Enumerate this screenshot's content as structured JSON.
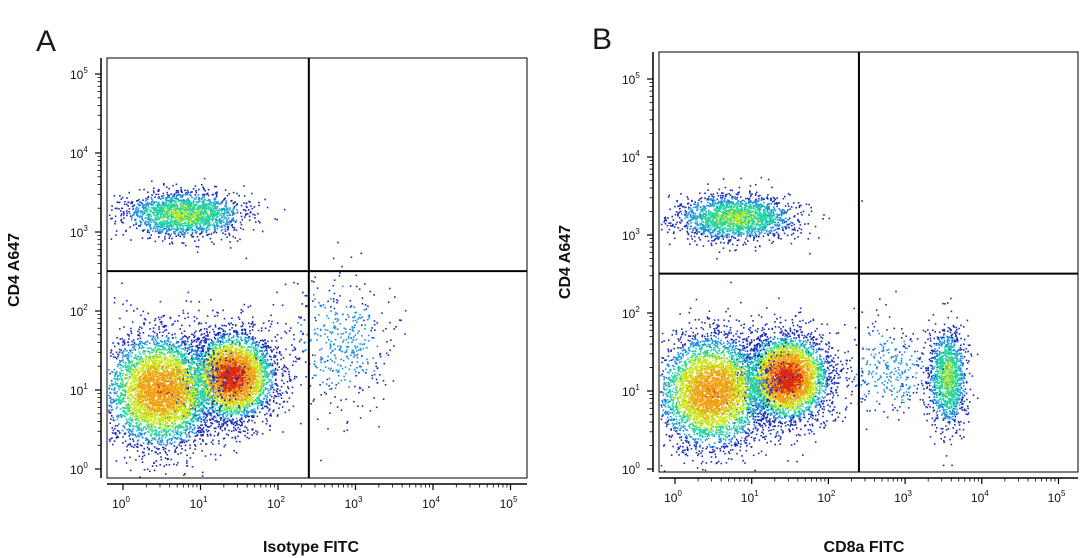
{
  "chart_data": [
    {
      "type": "scatter",
      "panel_label": "A",
      "xlabel": "Isotype FITC",
      "ylabel": "CD4 A647",
      "x_scale": "log",
      "y_scale": "log",
      "xlim": [
        0.6,
        150000
      ],
      "ylim": [
        0.6,
        200000
      ],
      "x_ticks": [
        "10^0",
        "10^1",
        "10^2",
        "10^3",
        "10^4",
        "10^5"
      ],
      "y_ticks": [
        "10^0",
        "10^1",
        "10^2",
        "10^3",
        "10^4",
        "10^5"
      ],
      "quadrant_gate": {
        "x": 250,
        "y": 320
      },
      "populations": [
        {
          "name": "",
          "x_center": 25,
          "y_center": 15,
          "x_spread_log": 0.28,
          "y_spread_log": 0.28,
          "count": 3800,
          "density": "very high"
        },
        {
          "name": "",
          "x_center": 3,
          "y_center": 10,
          "x_spread_log": 0.36,
          "y_spread_log": 0.36,
          "count": 4200,
          "density": "high"
        },
        {
          "name": "",
          "x_center": 6,
          "y_center": 1700,
          "x_spread_log": 0.38,
          "y_spread_log": 0.14,
          "count": 1900,
          "density": "medium"
        },
        {
          "name": "",
          "x_center": 600,
          "y_center": 40,
          "x_spread_log": 0.35,
          "y_spread_log": 0.4,
          "count": 450,
          "density": "low"
        }
      ],
      "density_colors": [
        "#1a2ab5",
        "#1e8fe0",
        "#23d4a0",
        "#c8e81a",
        "#f0a012",
        "#d92a10"
      ]
    },
    {
      "type": "scatter",
      "panel_label": "B",
      "xlabel": "CD8a FITC",
      "ylabel": "CD4 A647",
      "x_scale": "log",
      "y_scale": "log",
      "xlim": [
        0.6,
        150000
      ],
      "ylim": [
        0.6,
        200000
      ],
      "x_ticks": [
        "10^0",
        "10^1",
        "10^2",
        "10^3",
        "10^4",
        "10^5"
      ],
      "y_ticks": [
        "10^0",
        "10^1",
        "10^2",
        "10^3",
        "10^4",
        "10^5"
      ],
      "quadrant_gate": {
        "x": 250,
        "y": 320
      },
      "populations": [
        {
          "name": "",
          "x_center": 28,
          "y_center": 15,
          "x_spread_log": 0.28,
          "y_spread_log": 0.28,
          "count": 4000,
          "density": "very high"
        },
        {
          "name": "",
          "x_center": 3,
          "y_center": 10,
          "x_spread_log": 0.36,
          "y_spread_log": 0.36,
          "count": 4000,
          "density": "high"
        },
        {
          "name": "",
          "x_center": 6,
          "y_center": 1700,
          "x_spread_log": 0.38,
          "y_spread_log": 0.14,
          "count": 1900,
          "density": "medium"
        },
        {
          "name": "",
          "x_center": 3500,
          "y_center": 15,
          "x_spread_log": 0.12,
          "y_spread_log": 0.3,
          "count": 1300,
          "density": "medium"
        },
        {
          "name": "",
          "x_center": 600,
          "y_center": 20,
          "x_spread_log": 0.3,
          "y_spread_log": 0.3,
          "count": 300,
          "density": "low"
        }
      ],
      "density_colors": [
        "#1a2ab5",
        "#1e8fe0",
        "#23d4a0",
        "#c8e81a",
        "#f0a012",
        "#d92a10"
      ]
    }
  ]
}
